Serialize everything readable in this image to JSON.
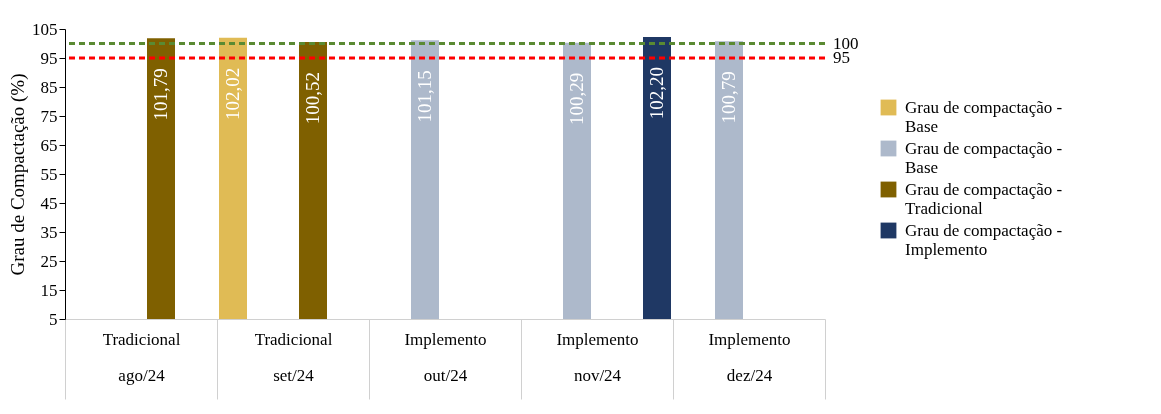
{
  "chart_data": {
    "type": "bar",
    "ylabel": "Grau de Compactação (%)",
    "categories": [
      "Tradicional\nago/24",
      "Tradicional\nset/24",
      "Implemento\nout/24",
      "Implemento\nnov/24",
      "Implemento\ndez/24"
    ],
    "series": [
      {
        "name": "Grau de compactação - Base",
        "color": "#e0bb55",
        "values": [
          null,
          102.02,
          null,
          null,
          null
        ],
        "value_labels": [
          null,
          "102,02",
          null,
          null,
          null
        ]
      },
      {
        "name": "Grau de compactação - Base",
        "color": "#adb9cb",
        "values": [
          null,
          null,
          101.15,
          100.29,
          100.79
        ],
        "value_labels": [
          null,
          null,
          "101,15",
          "100,29",
          "100,79"
        ]
      },
      {
        "name": "Grau de compactação - Tradicional",
        "color": "#7f6000",
        "values": [
          101.79,
          100.52,
          null,
          null,
          null
        ],
        "value_labels": [
          "101,79",
          "100,52",
          null,
          null,
          null
        ]
      },
      {
        "name": "Grau de compactação - Implemento",
        "color": "#1f3864",
        "values": [
          null,
          null,
          null,
          102.2,
          null
        ],
        "value_labels": [
          null,
          null,
          null,
          "102,20",
          null
        ]
      }
    ],
    "ylim": [
      5,
      105
    ],
    "yticks": [
      5,
      15,
      25,
      35,
      45,
      55,
      65,
      75,
      85,
      95,
      105
    ],
    "ref_lines": [
      {
        "axis": "y",
        "value": 100,
        "label": "100",
        "color": "#5a8a32",
        "line_style": "dashed"
      },
      {
        "axis": "y",
        "value": 95,
        "label": "95",
        "color": "#ff0000",
        "line_style": "dashed"
      }
    ],
    "legend": "right",
    "grid": false
  }
}
